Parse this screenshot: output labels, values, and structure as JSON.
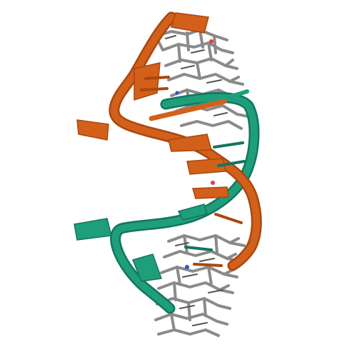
{
  "scene": {
    "subject": "rna-double-helix-cartoon",
    "background_color": "#ffffff"
  },
  "colors": {
    "strand_a": "#d2601a",
    "strand_a_dark": "#a9470e",
    "strand_b": "#1f9e7a",
    "strand_b_dark": "#137560",
    "base_atoms": "#8a8a8a",
    "base_bond_dark": "#555555",
    "oxygen": "#e0403a",
    "nitrogen": "#3550c8"
  }
}
